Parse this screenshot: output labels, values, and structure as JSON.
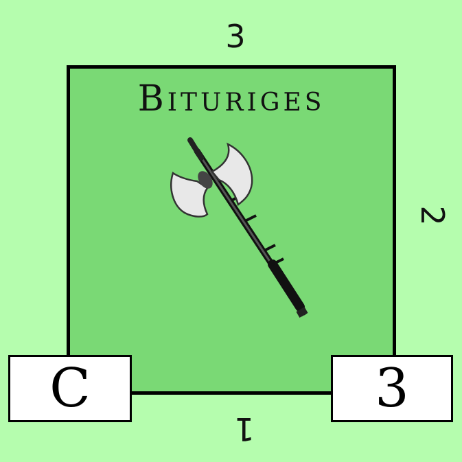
{
  "tile": {
    "name": "Bituriges",
    "emblem_icon": "battle-axe-icon",
    "edges": {
      "top": "3",
      "right": "2",
      "bottom": "1"
    },
    "stats": {
      "left": "C",
      "right": "3"
    }
  },
  "colors": {
    "background": "#b5fdae",
    "card": "#7ad975",
    "border": "#000000"
  }
}
